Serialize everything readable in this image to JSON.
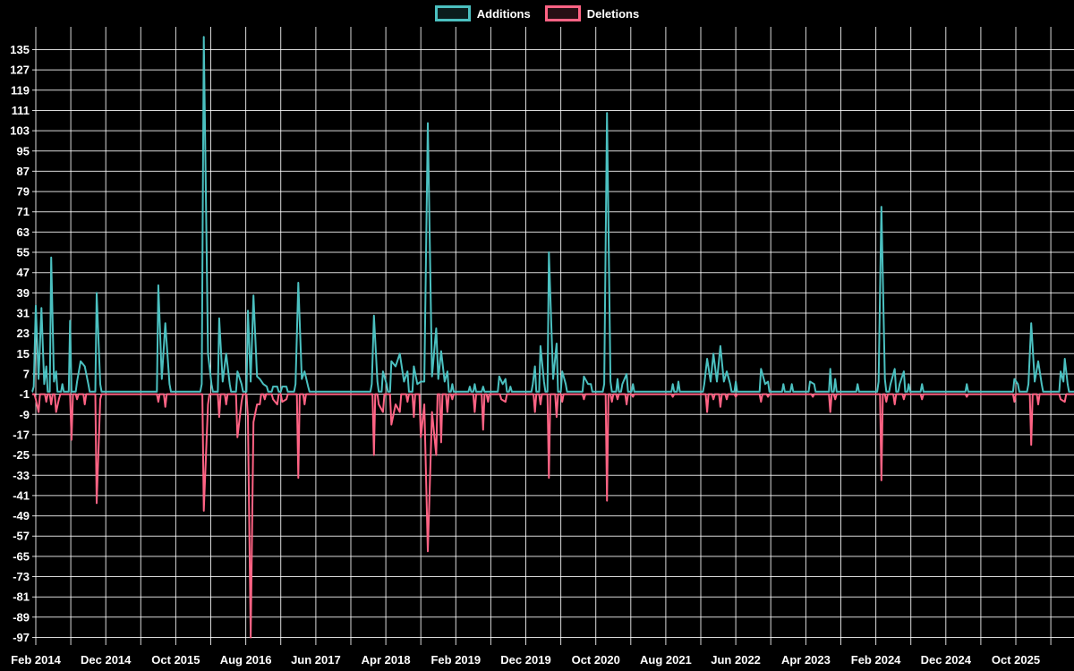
{
  "chart": {
    "background": "#000000",
    "text_color": "#ffffff",
    "grid_color": "rgba(255,255,255,0.85)"
  },
  "chart_data": {
    "type": "line",
    "legend_position": "top",
    "grid": true,
    "x_unit": "months since Feb 2014",
    "x_axis_labels": [
      "Feb 2014",
      "Dec 2014",
      "Oct 2015",
      "Aug 2016",
      "Jun 2017",
      "Apr 2018",
      "Feb 2019",
      "Dec 2019",
      "Oct 2020",
      "Aug 2021",
      "Jun 2022",
      "Apr 2023",
      "Feb 2024",
      "Dec 2024",
      "Oct 2025"
    ],
    "x_label_step_months": 10,
    "y_ticks": [
      135,
      127,
      119,
      111,
      103,
      95,
      87,
      79,
      71,
      63,
      55,
      47,
      39,
      31,
      23,
      15,
      7,
      -1,
      -9,
      -17,
      -25,
      -33,
      -41,
      -49,
      -57,
      -65,
      -73,
      -81,
      -89,
      -97
    ],
    "ylim": [
      -100,
      144
    ],
    "series": [
      {
        "name": "Additions",
        "color": "#4bc0c0",
        "baseline": 0,
        "points": [
          [
            -0.3,
            2
          ],
          [
            0,
            34
          ],
          [
            0.4,
            5
          ],
          [
            0.8,
            33
          ],
          [
            1.2,
            3
          ],
          [
            1.5,
            10
          ],
          [
            2.2,
            53
          ],
          [
            2.6,
            4
          ],
          [
            2.9,
            8
          ],
          [
            3.8,
            3
          ],
          [
            4.9,
            28
          ],
          [
            5.9,
            4
          ],
          [
            6.4,
            12
          ],
          [
            7.0,
            10
          ],
          [
            7.5,
            3
          ],
          [
            8.7,
            39
          ],
          [
            9.2,
            3
          ],
          [
            17.5,
            42
          ],
          [
            18.0,
            5
          ],
          [
            18.5,
            27
          ],
          [
            19.1,
            3
          ],
          [
            23.7,
            3
          ],
          [
            24.0,
            140
          ],
          [
            24.6,
            15
          ],
          [
            25.1,
            3
          ],
          [
            26.2,
            29
          ],
          [
            26.7,
            4
          ],
          [
            27.2,
            15
          ],
          [
            27.7,
            3
          ],
          [
            28.8,
            8
          ],
          [
            29.4,
            3
          ],
          [
            30.3,
            32
          ],
          [
            30.7,
            4
          ],
          [
            31.1,
            38
          ],
          [
            31.6,
            6
          ],
          [
            32.0,
            5
          ],
          [
            32.5,
            3
          ],
          [
            33.0,
            2
          ],
          [
            33.9,
            2
          ],
          [
            34.5,
            2
          ],
          [
            35.2,
            2
          ],
          [
            35.8,
            2
          ],
          [
            37.1,
            3
          ],
          [
            37.5,
            43
          ],
          [
            38.0,
            5
          ],
          [
            38.4,
            8
          ],
          [
            38.9,
            2
          ],
          [
            48.0,
            3
          ],
          [
            48.3,
            30
          ],
          [
            48.8,
            4
          ],
          [
            49.6,
            8
          ],
          [
            50.1,
            3
          ],
          [
            50.8,
            12
          ],
          [
            51.4,
            10
          ],
          [
            52.0,
            15
          ],
          [
            52.6,
            4
          ],
          [
            53.1,
            8
          ],
          [
            54.0,
            10
          ],
          [
            54.5,
            3
          ],
          [
            55.0,
            4
          ],
          [
            55.5,
            4
          ],
          [
            56.0,
            106
          ],
          [
            56.6,
            6
          ],
          [
            57.2,
            25
          ],
          [
            57.5,
            5
          ],
          [
            57.9,
            16
          ],
          [
            58.4,
            4
          ],
          [
            58.8,
            8
          ],
          [
            59.5,
            3
          ],
          [
            62.0,
            2
          ],
          [
            62.7,
            3
          ],
          [
            63.9,
            2
          ],
          [
            66.2,
            6
          ],
          [
            66.7,
            3
          ],
          [
            67.1,
            5
          ],
          [
            67.8,
            2
          ],
          [
            71.0,
            3
          ],
          [
            71.3,
            10
          ],
          [
            72.1,
            18
          ],
          [
            72.6,
            4
          ],
          [
            73.3,
            55
          ],
          [
            73.9,
            5
          ],
          [
            74.4,
            19
          ],
          [
            75.2,
            8
          ],
          [
            75.7,
            3
          ],
          [
            78.3,
            6
          ],
          [
            78.9,
            3
          ],
          [
            79.3,
            3
          ],
          [
            81.2,
            3
          ],
          [
            81.6,
            110
          ],
          [
            82.1,
            4
          ],
          [
            83.1,
            5
          ],
          [
            83.8,
            3
          ],
          [
            84.4,
            7
          ],
          [
            85.3,
            3
          ],
          [
            91.0,
            3
          ],
          [
            91.8,
            4
          ],
          [
            95.5,
            3
          ],
          [
            95.9,
            13
          ],
          [
            96.4,
            4
          ],
          [
            96.8,
            15
          ],
          [
            97.3,
            4
          ],
          [
            97.8,
            18
          ],
          [
            98.3,
            4
          ],
          [
            98.7,
            8
          ],
          [
            99.2,
            3
          ],
          [
            100.0,
            4
          ],
          [
            103.6,
            9
          ],
          [
            104.2,
            3
          ],
          [
            104.6,
            4
          ],
          [
            106.8,
            3
          ],
          [
            108.0,
            3
          ],
          [
            110.6,
            4
          ],
          [
            111.2,
            3
          ],
          [
            113.5,
            9
          ],
          [
            114.2,
            5
          ],
          [
            117.4,
            3
          ],
          [
            120.4,
            4
          ],
          [
            120.8,
            73
          ],
          [
            121.3,
            5
          ],
          [
            122.1,
            3
          ],
          [
            122.7,
            9
          ],
          [
            123.4,
            3
          ],
          [
            124.0,
            8
          ],
          [
            124.7,
            3
          ],
          [
            126.6,
            3
          ],
          [
            133.0,
            3
          ],
          [
            139.8,
            5
          ],
          [
            140.3,
            3
          ],
          [
            141.8,
            3
          ],
          [
            142.2,
            27
          ],
          [
            142.7,
            4
          ],
          [
            143.2,
            12
          ],
          [
            143.7,
            3
          ],
          [
            146.4,
            8
          ],
          [
            146.8,
            4
          ],
          [
            147.0,
            13
          ],
          [
            147.4,
            3
          ]
        ]
      },
      {
        "name": "Deletions",
        "color": "#ff6384",
        "baseline": -1,
        "points": [
          [
            0,
            -3
          ],
          [
            0.4,
            -8
          ],
          [
            1.5,
            -4
          ],
          [
            2.2,
            -5
          ],
          [
            2.9,
            -8
          ],
          [
            3.3,
            -3
          ],
          [
            5.1,
            -19
          ],
          [
            5.9,
            -3
          ],
          [
            7.0,
            -5
          ],
          [
            8.7,
            -44
          ],
          [
            9.2,
            -3
          ],
          [
            17.5,
            -4
          ],
          [
            18.5,
            -6
          ],
          [
            24.0,
            -47
          ],
          [
            24.6,
            -5
          ],
          [
            26.2,
            -10
          ],
          [
            27.2,
            -5
          ],
          [
            28.8,
            -18
          ],
          [
            29.4,
            -4
          ],
          [
            30.3,
            -10
          ],
          [
            30.7,
            -97
          ],
          [
            31.1,
            -12
          ],
          [
            31.6,
            -5
          ],
          [
            32.0,
            -5
          ],
          [
            32.7,
            -3
          ],
          [
            33.9,
            -3
          ],
          [
            34.5,
            -5
          ],
          [
            35.2,
            -4
          ],
          [
            35.8,
            -3
          ],
          [
            37.5,
            -34
          ],
          [
            38.4,
            -5
          ],
          [
            48.3,
            -25
          ],
          [
            49.0,
            -5
          ],
          [
            49.6,
            -8
          ],
          [
            50.8,
            -13
          ],
          [
            51.4,
            -5
          ],
          [
            52.0,
            -8
          ],
          [
            53.1,
            -4
          ],
          [
            54.0,
            -10
          ],
          [
            55.0,
            -18
          ],
          [
            55.5,
            -5
          ],
          [
            56.0,
            -63
          ],
          [
            56.6,
            -8
          ],
          [
            57.2,
            -25
          ],
          [
            57.9,
            -20
          ],
          [
            58.8,
            -8
          ],
          [
            59.5,
            -3
          ],
          [
            62.7,
            -8
          ],
          [
            63.9,
            -15
          ],
          [
            64.6,
            -4
          ],
          [
            66.5,
            -3
          ],
          [
            67.1,
            -4
          ],
          [
            71.3,
            -8
          ],
          [
            72.1,
            -5
          ],
          [
            73.3,
            -34
          ],
          [
            74.4,
            -10
          ],
          [
            75.2,
            -4
          ],
          [
            78.3,
            -3
          ],
          [
            81.6,
            -43
          ],
          [
            82.3,
            -4
          ],
          [
            83.1,
            -3
          ],
          [
            84.4,
            -5
          ],
          [
            85.3,
            -2
          ],
          [
            91.0,
            -2
          ],
          [
            95.9,
            -8
          ],
          [
            96.8,
            -3
          ],
          [
            97.8,
            -6
          ],
          [
            98.7,
            -3
          ],
          [
            100.0,
            -2
          ],
          [
            103.6,
            -4
          ],
          [
            104.6,
            -2
          ],
          [
            111.0,
            -2
          ],
          [
            113.5,
            -8
          ],
          [
            114.2,
            -3
          ],
          [
            120.8,
            -35
          ],
          [
            121.5,
            -4
          ],
          [
            122.7,
            -5
          ],
          [
            124.0,
            -3
          ],
          [
            126.6,
            -3
          ],
          [
            133.0,
            -2
          ],
          [
            139.8,
            -4
          ],
          [
            142.2,
            -21
          ],
          [
            143.2,
            -5
          ],
          [
            146.4,
            -3
          ],
          [
            147.0,
            -4
          ]
        ]
      }
    ]
  }
}
